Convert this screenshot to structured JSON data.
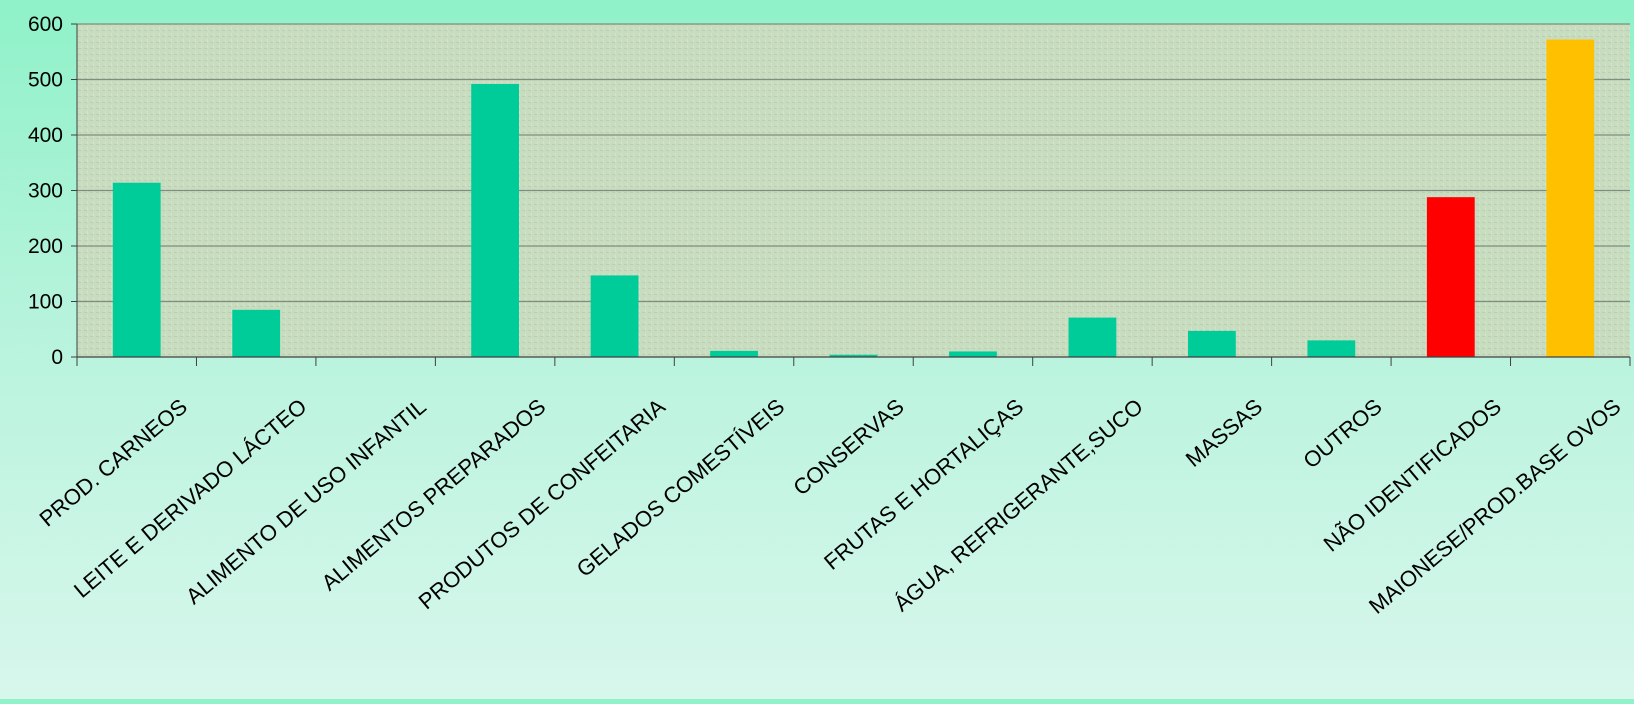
{
  "chart_data": {
    "type": "bar",
    "title": "",
    "xlabel": "",
    "ylabel": "",
    "ylim": [
      0,
      600
    ],
    "yticks": [
      0,
      100,
      200,
      300,
      400,
      500,
      600
    ],
    "grid": true,
    "legend": "none",
    "categories": [
      "PROD. CARNEOS",
      "LEITE E DERIVADO LÁCTEO",
      "ALIMENTO DE USO INFANTIL",
      "ALIMENTOS PREPARADOS",
      "PRODUTOS DE CONFEITARIA",
      "GELADOS COMESTÍVEIS",
      "CONSERVAS",
      "FRUTAS E HORTALIÇAS",
      "ÁGUA, REFRIGERANTE,SUCO",
      "MASSAS",
      "OUTROS",
      "NÃO IDENTIFICADOS",
      "MAIONESE/PROD.BASE OVOS"
    ],
    "values": [
      314,
      85,
      0,
      492,
      147,
      11,
      4,
      10,
      71,
      47,
      30,
      288,
      572
    ],
    "bar_colors": [
      "#00cc99",
      "#00cc99",
      "#00cc99",
      "#00cc99",
      "#00cc99",
      "#00cc99",
      "#00cc99",
      "#00cc99",
      "#00cc99",
      "#00cc99",
      "#00cc99",
      "#ff0000",
      "#ffc000"
    ],
    "colors": {
      "plot_background": "#c9dcc0",
      "gridline": "#7f8f7f",
      "axis": "#404040",
      "text": "#000000"
    }
  }
}
